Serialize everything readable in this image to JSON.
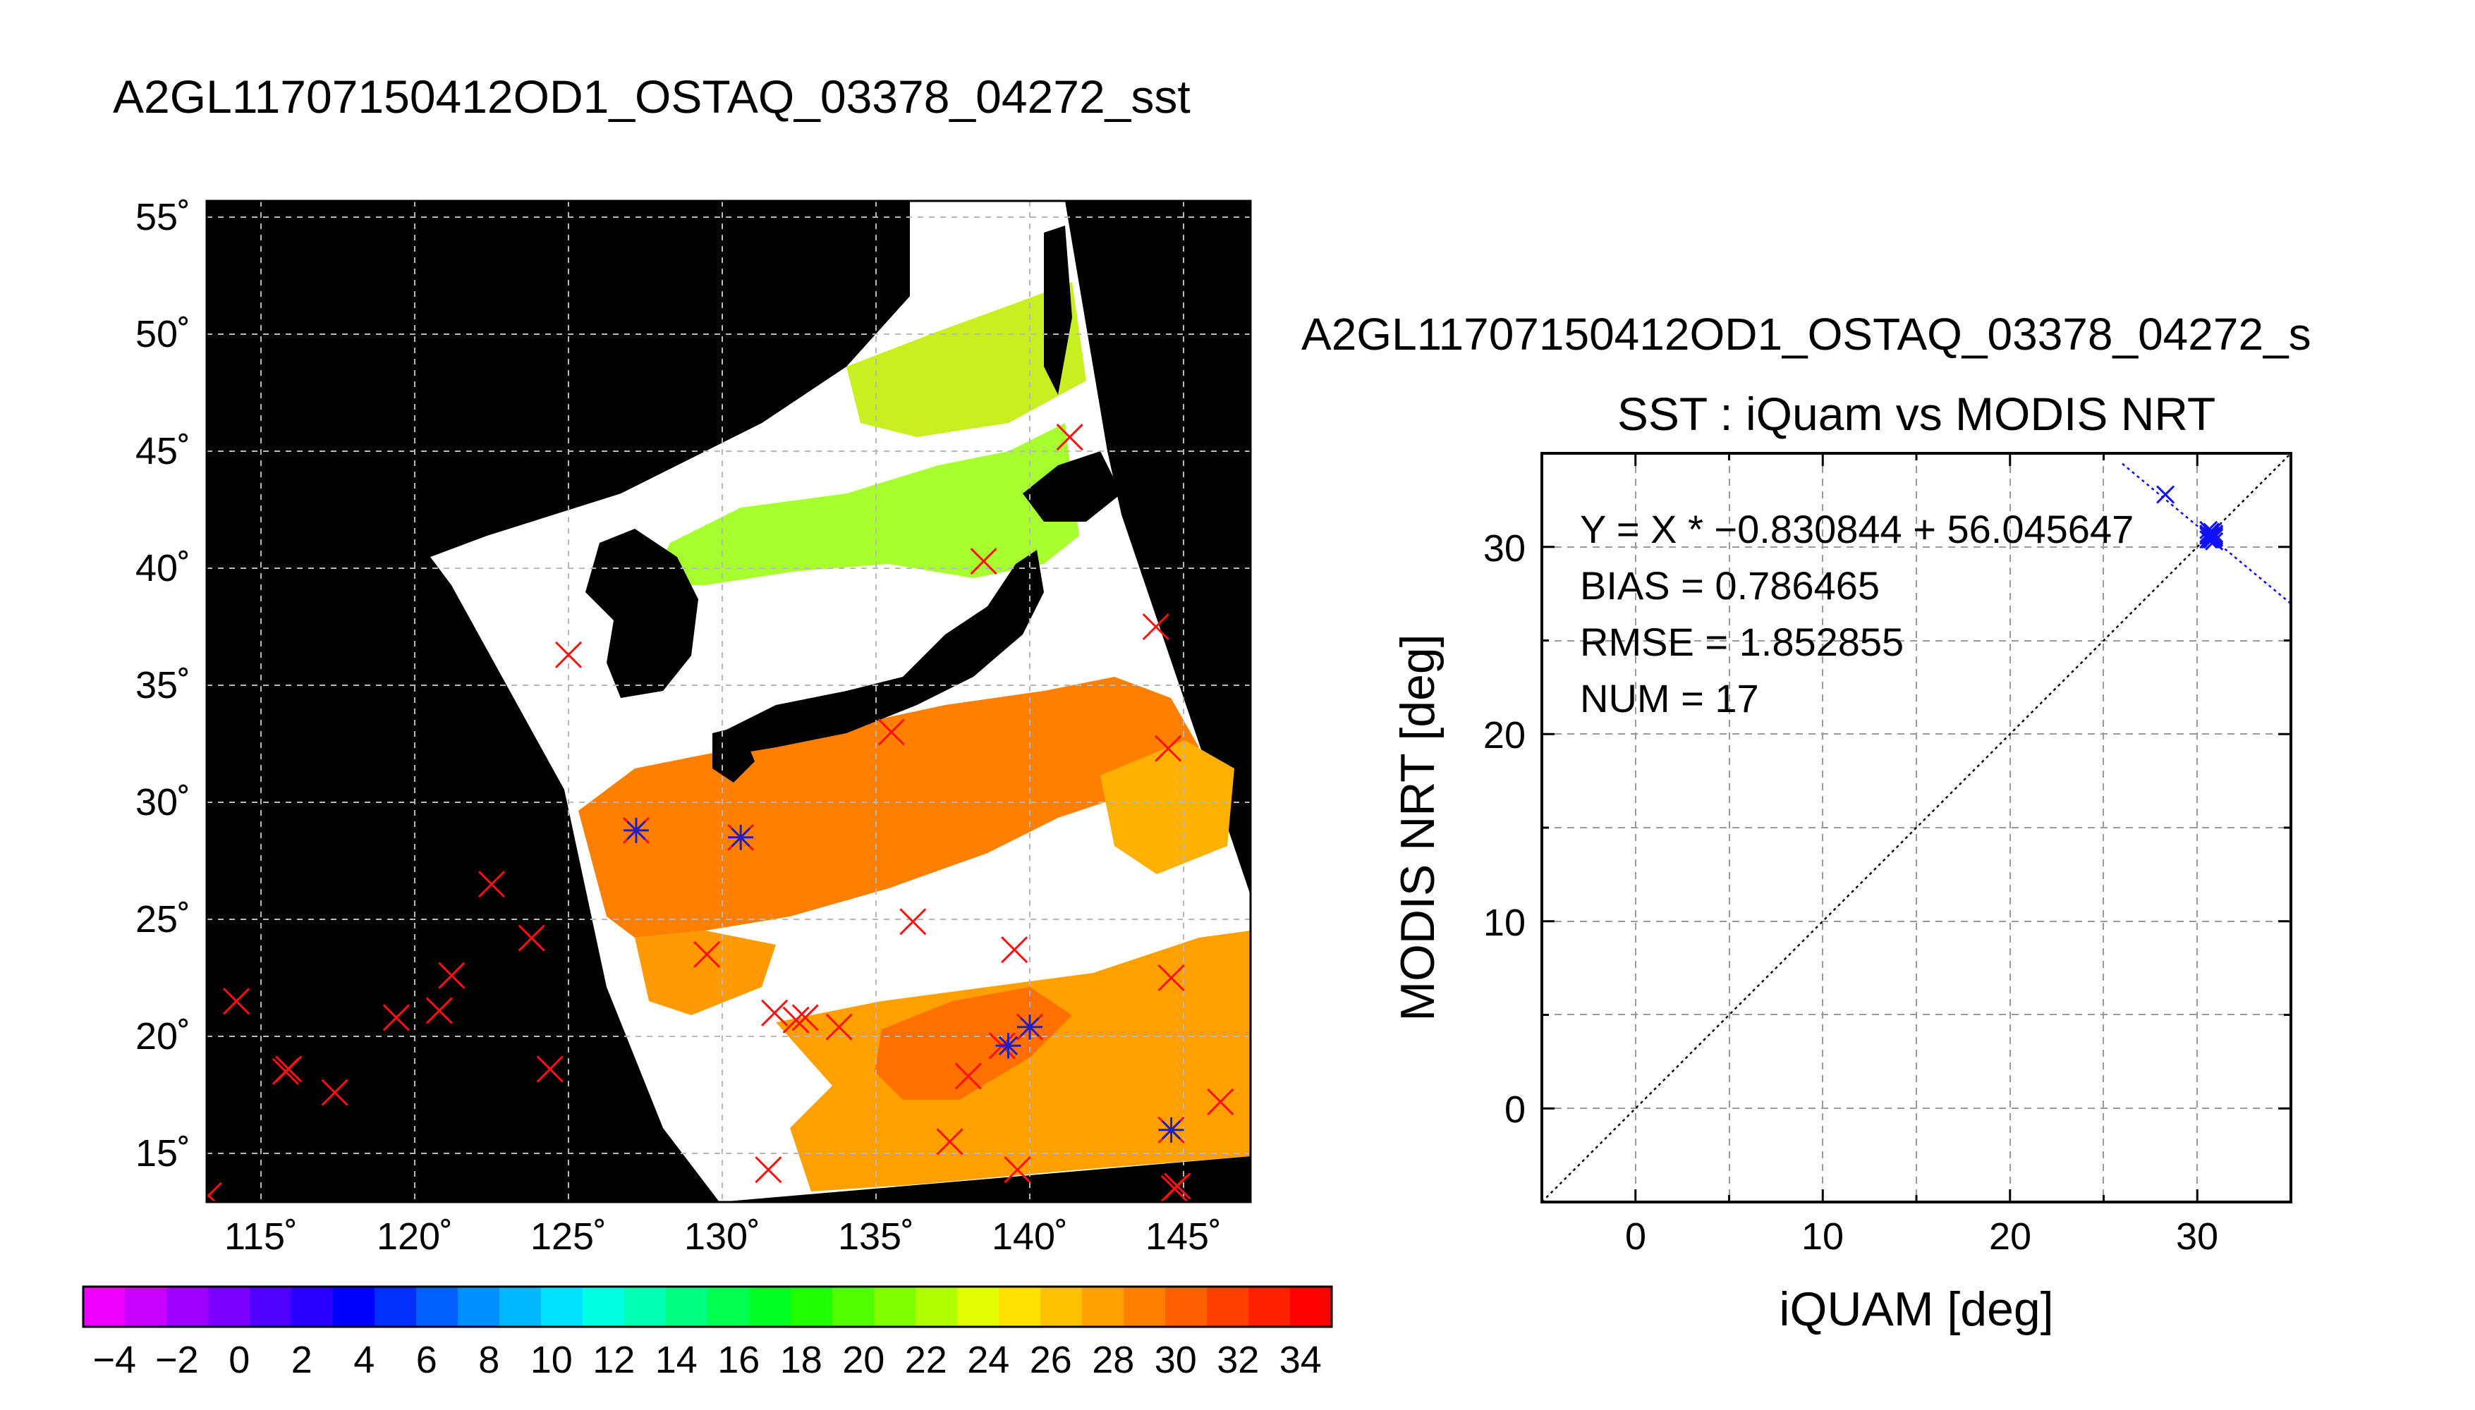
{
  "page_title": "A2GL11707150412OD1_OSTAQ_03378_04272_sst",
  "map": {
    "lat_ticks": [
      "55˚",
      "50˚",
      "45˚",
      "40˚",
      "35˚",
      "30˚",
      "25˚",
      "20˚",
      "15˚"
    ],
    "lon_ticks": [
      "115˚",
      "120˚",
      "125˚",
      "130˚",
      "135˚",
      "140˚",
      "145˚"
    ],
    "markers_red_x": [
      [
        46,
        48.5
      ],
      [
        45.5,
        54.3
      ],
      [
        38.8,
        40.3
      ],
      [
        38.8,
        44.6
      ],
      [
        37,
        51.7
      ],
      [
        36.2,
        59.2
      ],
      [
        35.9,
        45.8
      ],
      [
        33.2,
        62.1
      ],
      [
        32.6,
        42
      ],
      [
        30.4,
        44.3
      ],
      [
        30.4,
        50.3
      ],
      [
        29.8,
        46.9
      ],
      [
        29.8,
        47.8
      ],
      [
        28.6,
        58.3
      ],
      [
        28.6,
        43.3
      ],
      [
        24.9,
        64.2
      ],
      [
        24.4,
        70.4
      ],
      [
        24.1,
        29.7
      ],
      [
        23.4,
        71.9
      ],
      [
        23.3,
        73.1
      ],
      [
        22.5,
        62.9
      ],
      [
        21.2,
        57.1
      ],
      [
        20.8,
        68.9
      ],
      [
        20.5,
        59.3
      ],
      [
        20.3,
        60.2
      ],
      [
        20.1,
        53.9
      ],
      [
        19.9,
        44.8
      ],
      [
        19.4,
        38.6
      ],
      [
        18.7,
        50.7
      ],
      [
        18.6,
        25.5
      ],
      [
        16.6,
        28.2
      ],
      [
        16.2,
        34.6
      ],
      [
        15.4,
        32.7
      ],
      [
        14.7,
        16.6
      ],
      [
        14.7,
        17.8
      ],
      [
        14,
        43.6
      ],
      [
        13.1,
        12.3
      ],
      [
        12.6,
        21.8
      ],
      [
        12.3,
        40.1
      ],
      [
        11.9,
        46.3
      ],
      [
        10.7,
        3.6
      ],
      [
        10.3,
        6.2
      ],
      [
        10.1,
        15.8
      ],
      [
        9.3,
        10.7
      ],
      [
        9,
        24.7
      ],
      [
        8.4,
        10.8
      ],
      [
        7.1,
        19.1
      ],
      [
        6.8,
        18.5
      ],
      [
        6.8,
        19.2
      ],
      [
        6.5,
        20.7
      ],
      [
        3.1,
        10.4
      ],
      [
        1.4,
        13.1
      ],
      [
        1.4,
        13.3
      ],
      [
        1,
        16.8
      ],
      [
        0,
        17.3
      ],
      [
        2,
        64.1
      ],
      [
        5.1,
        46.5
      ],
      [
        2.2,
        54.2
      ],
      [
        0.5,
        46.8
      ],
      [
        3.5,
        56.6
      ],
      [
        4,
        70.6
      ]
    ],
    "markers_blue_star": [
      [
        28.9,
        71.8
      ],
      [
        28.7,
        72.3
      ],
      [
        30.1,
        63.8
      ],
      [
        35.5,
        73.9
      ],
      [
        30.4,
        44.3
      ]
    ]
  },
  "colorbar": {
    "labels": [
      "−4",
      "−2",
      "0",
      "2",
      "4",
      "6",
      "8",
      "10",
      "12",
      "14",
      "16",
      "18",
      "20",
      "22",
      "24",
      "26",
      "28",
      "30",
      "32",
      "34"
    ],
    "colors": [
      "#ee00ff",
      "#c800ff",
      "#a000ff",
      "#7a00ff",
      "#5000ff",
      "#2800ff",
      "#0000ff",
      "#0030ff",
      "#0060ff",
      "#0090ff",
      "#00b8ff",
      "#00e0ff",
      "#00ffe0",
      "#00ffb0",
      "#00ff80",
      "#00ff50",
      "#00ff20",
      "#20ff00",
      "#50ff00",
      "#80ff00",
      "#b0ff00",
      "#e0ff00",
      "#ffe000",
      "#ffc000",
      "#ffa000",
      "#ff8000",
      "#ff6000",
      "#ff4000",
      "#ff2000",
      "#ff0000"
    ]
  },
  "scatter": {
    "title_top": "A2GL11707150412OD1_OSTAQ_03378_04272_s",
    "title": "SST : iQuam vs MODIS NRT",
    "stats": [
      "Y = X * −0.830844 + 56.045647",
      "BIAS = 0.786465",
      "RMSE = 1.852855",
      "NUM = 17"
    ],
    "x_ticks": [
      "0",
      "10",
      "20",
      "30"
    ],
    "y_ticks": [
      "0",
      "10",
      "20",
      "30"
    ]
  },
  "chart_data": {
    "type": "scatter",
    "title": "SST : iQuam vs MODIS NRT",
    "xlabel": "iQUAM [deg]",
    "ylabel": "MODIS NRT [deg]",
    "xlim": [
      -5,
      35
    ],
    "ylim": [
      -5,
      35
    ],
    "grid": true,
    "points": [
      {
        "x": 28.3,
        "y": 32.8
      },
      {
        "x": 30.6,
        "y": 30.9
      },
      {
        "x": 30.7,
        "y": 30.6
      },
      {
        "x": 30.8,
        "y": 30.4
      },
      {
        "x": 30.9,
        "y": 30.5
      },
      {
        "x": 30.6,
        "y": 30.7
      },
      {
        "x": 30.8,
        "y": 30.8
      },
      {
        "x": 30.9,
        "y": 30.3
      },
      {
        "x": 30.7,
        "y": 30.5
      },
      {
        "x": 30.8,
        "y": 30.6
      },
      {
        "x": 30.6,
        "y": 30.4
      },
      {
        "x": 30.9,
        "y": 30.7
      },
      {
        "x": 30.7,
        "y": 30.8
      },
      {
        "x": 30.8,
        "y": 30.5
      },
      {
        "x": 30.6,
        "y": 30.6
      },
      {
        "x": 30.9,
        "y": 30.6
      },
      {
        "x": 30.7,
        "y": 30.4
      }
    ],
    "fit": {
      "slope": -0.830844,
      "intercept": 56.045647
    },
    "reference_line": "y = x",
    "marker_color": "#1010ff",
    "line_color": "#0000ff"
  }
}
